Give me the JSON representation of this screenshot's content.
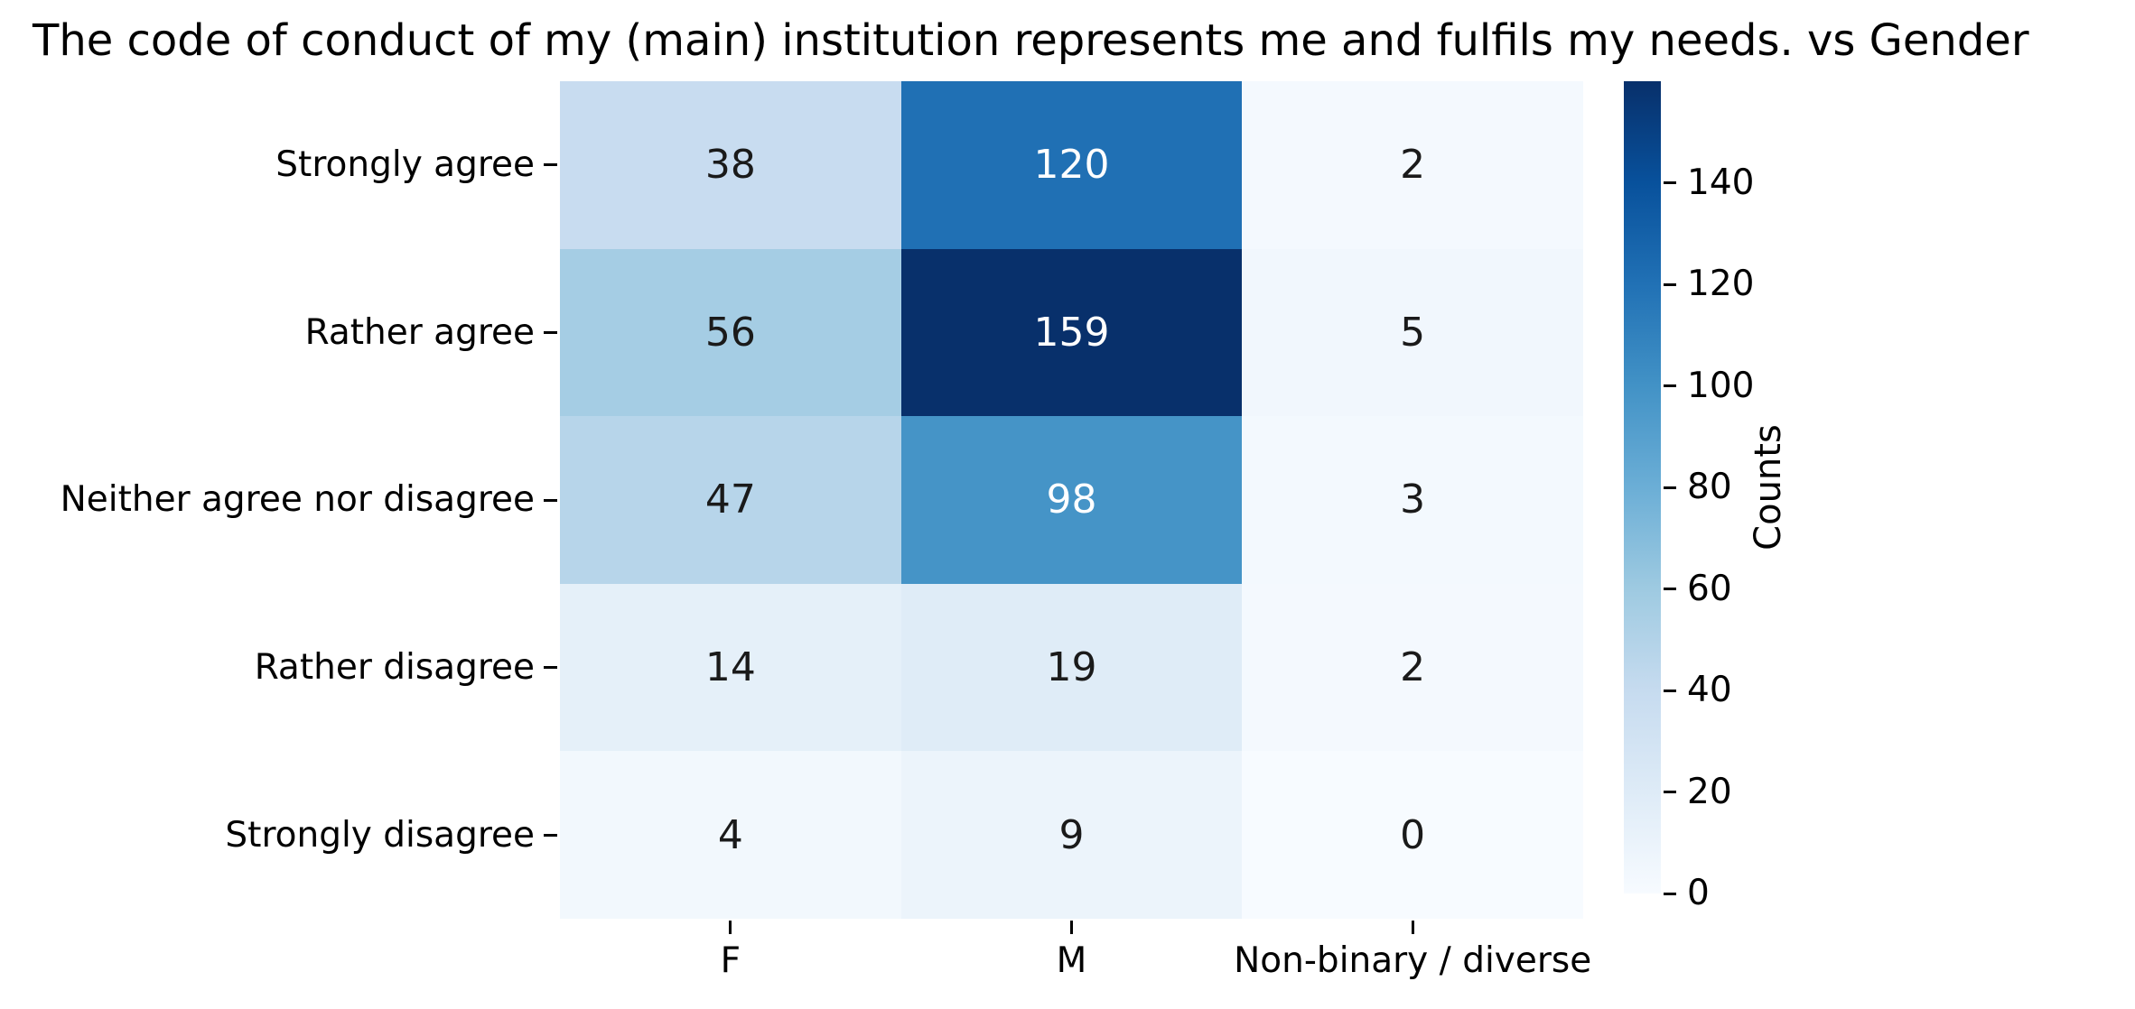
{
  "chart_data": {
    "type": "heatmap",
    "title": "The code of conduct of my (main) institution represents me and fulfils my needs. vs Gender",
    "rows": [
      "Strongly agree",
      "Rather agree",
      "Neither agree nor disagree",
      "Rather disagree",
      "Strongly disagree"
    ],
    "columns": [
      "F",
      "M",
      "Non-binary / diverse"
    ],
    "values": [
      [
        38,
        120,
        2
      ],
      [
        56,
        159,
        5
      ],
      [
        47,
        98,
        3
      ],
      [
        14,
        19,
        2
      ],
      [
        4,
        9,
        0
      ]
    ],
    "colormap": "Blues",
    "cell_colors": [
      [
        "#c8dcf0",
        "#2070b4",
        "#f4f9fe"
      ],
      [
        "#a5cde4",
        "#08306b",
        "#f1f7fd"
      ],
      [
        "#b7d5ea",
        "#4594c7",
        "#f3f9fe"
      ],
      [
        "#e5f0f9",
        "#dfecf7",
        "#f4f9fe"
      ],
      [
        "#f2f8fd",
        "#ecf4fb",
        "#f7fbff"
      ]
    ],
    "cell_text_colors": [
      [
        "#1a1a1a",
        "#ffffff",
        "#1a1a1a"
      ],
      [
        "#1a1a1a",
        "#ffffff",
        "#1a1a1a"
      ],
      [
        "#1a1a1a",
        "#ffffff",
        "#1a1a1a"
      ],
      [
        "#1a1a1a",
        "#1a1a1a",
        "#1a1a1a"
      ],
      [
        "#1a1a1a",
        "#1a1a1a",
        "#1a1a1a"
      ]
    ],
    "colorbar": {
      "label": "Counts",
      "ticks": [
        0,
        20,
        40,
        60,
        80,
        100,
        120,
        140
      ],
      "vmin": 0,
      "vmax": 160,
      "gradient_bottom_to_top": [
        "#f7fbff",
        "#deebf7",
        "#c6dbef",
        "#9ecae1",
        "#6baed6",
        "#4292c6",
        "#2171b5",
        "#08519c",
        "#08306b"
      ]
    },
    "grid": false,
    "legend_position": "right-colorbar"
  }
}
